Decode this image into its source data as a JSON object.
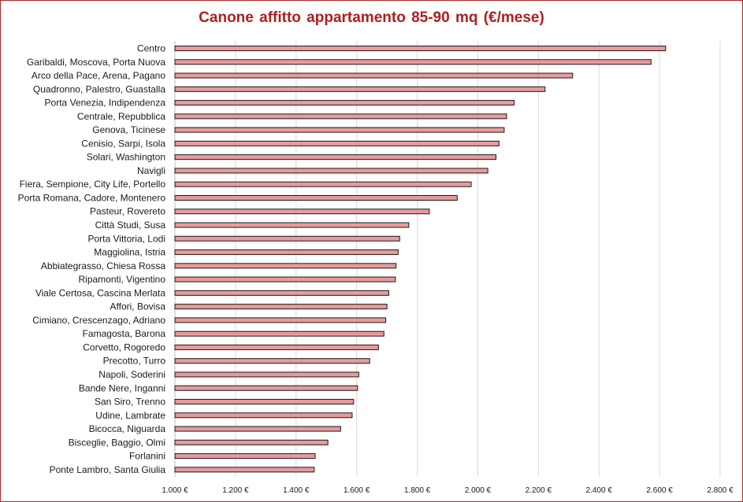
{
  "chart_data": {
    "type": "bar",
    "orientation": "horizontal",
    "title": "Canone  affitto appartamento  85-90 mq (€/mese)",
    "categories": [
      "Centro",
      "Garibaldi, Moscova, Porta Nuova",
      "Arco della Pace, Arena, Pagano",
      "Quadronno, Palestro, Guastalla",
      "Porta Venezia, Indipendenza",
      "Centrale, Repubblica",
      "Genova, Ticinese",
      "Cenisio, Sarpi, Isola",
      "Solari, Washington",
      "Navigli",
      "Fiera, Sempione, City Life, Portello",
      "Porta Romana, Cadore, Montenero",
      "Pasteur, Rovereto",
      "Città Studi, Susa",
      "Porta Vittoria, Lodi",
      "Maggiolina, Istria",
      "Abbiategrasso, Chiesa Rossa",
      "Ripamonti, Vigentino",
      "Viale Certosa, Cascina Merlata",
      "Affori, Bovisa",
      "Cimiano, Crescenzago, Adriano",
      "Famagosta, Barona",
      "Corvetto, Rogoredo",
      "Precotto, Turro",
      "Napoli, Soderini",
      "Bande Nere, Inganni",
      "San Siro, Trenno",
      "Udine, Lambrate",
      "Bicocca, Niguarda",
      "Bisceglie, Baggio, Olmi",
      "Forlanini",
      "Ponte Lambro, Santa Giulia"
    ],
    "values": [
      2620,
      2572,
      2313,
      2222,
      2120,
      2095,
      2087,
      2070,
      2060,
      2033,
      1978,
      1932,
      1840,
      1772,
      1742,
      1737,
      1730,
      1728,
      1706,
      1700,
      1696,
      1690,
      1672,
      1643,
      1607,
      1603,
      1590,
      1585,
      1547,
      1505,
      1463,
      1460
    ],
    "xlim": [
      1000,
      2800
    ],
    "xticks": [
      1000,
      1200,
      1400,
      1600,
      1800,
      2000,
      2200,
      2400,
      2600,
      2800
    ],
    "xtick_labels": [
      "1.000 €",
      "1.200 €",
      "1.400 €",
      "1.600 €",
      "1.800 €",
      "2.000 €",
      "2.200 €",
      "2.400 €",
      "2.600 €",
      "2.800 €"
    ],
    "grid": true,
    "legend": "none",
    "colors": {
      "bar_fill": "#e89a9a",
      "bar_stroke": "#1a1a1a",
      "grid": "#d9d9d9",
      "title": "#b01e1e",
      "border": "#a52a2a"
    }
  }
}
